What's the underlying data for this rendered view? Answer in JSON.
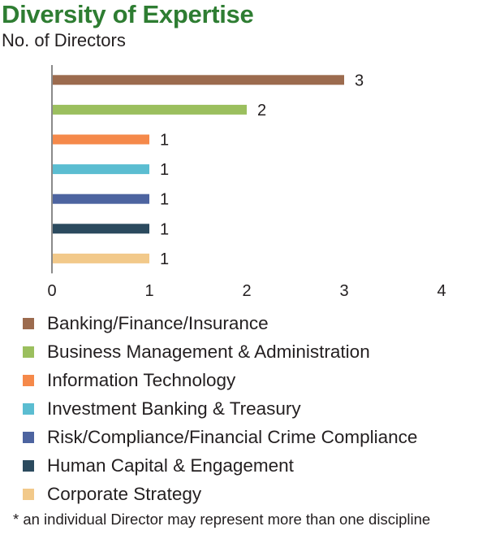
{
  "title": "Diversity of Expertise",
  "subtitle": "No. of Directors",
  "footnote": "* an individual Director may represent more than one discipline",
  "chart_data": {
    "type": "bar",
    "orientation": "horizontal",
    "categories": [
      "Banking/Finance/Insurance",
      "Business Management & Administration",
      "Information Technology",
      "Investment Banking & Treasury",
      "Risk/Compliance/Financial Crime Compliance",
      "Human Capital & Engagement",
      "Corporate Strategy"
    ],
    "values": [
      3,
      2,
      1,
      1,
      1,
      1,
      1
    ],
    "colors": [
      "#9c6b4e",
      "#9bbf5e",
      "#f5894a",
      "#5bbdd1",
      "#4d64a0",
      "#2b4a5e",
      "#f2c98a"
    ],
    "xlim": [
      0,
      4
    ],
    "xticks": [
      "0",
      "1",
      "2",
      "3",
      "4"
    ],
    "grid": false,
    "data_labels": true,
    "legend_position": "bottom"
  }
}
